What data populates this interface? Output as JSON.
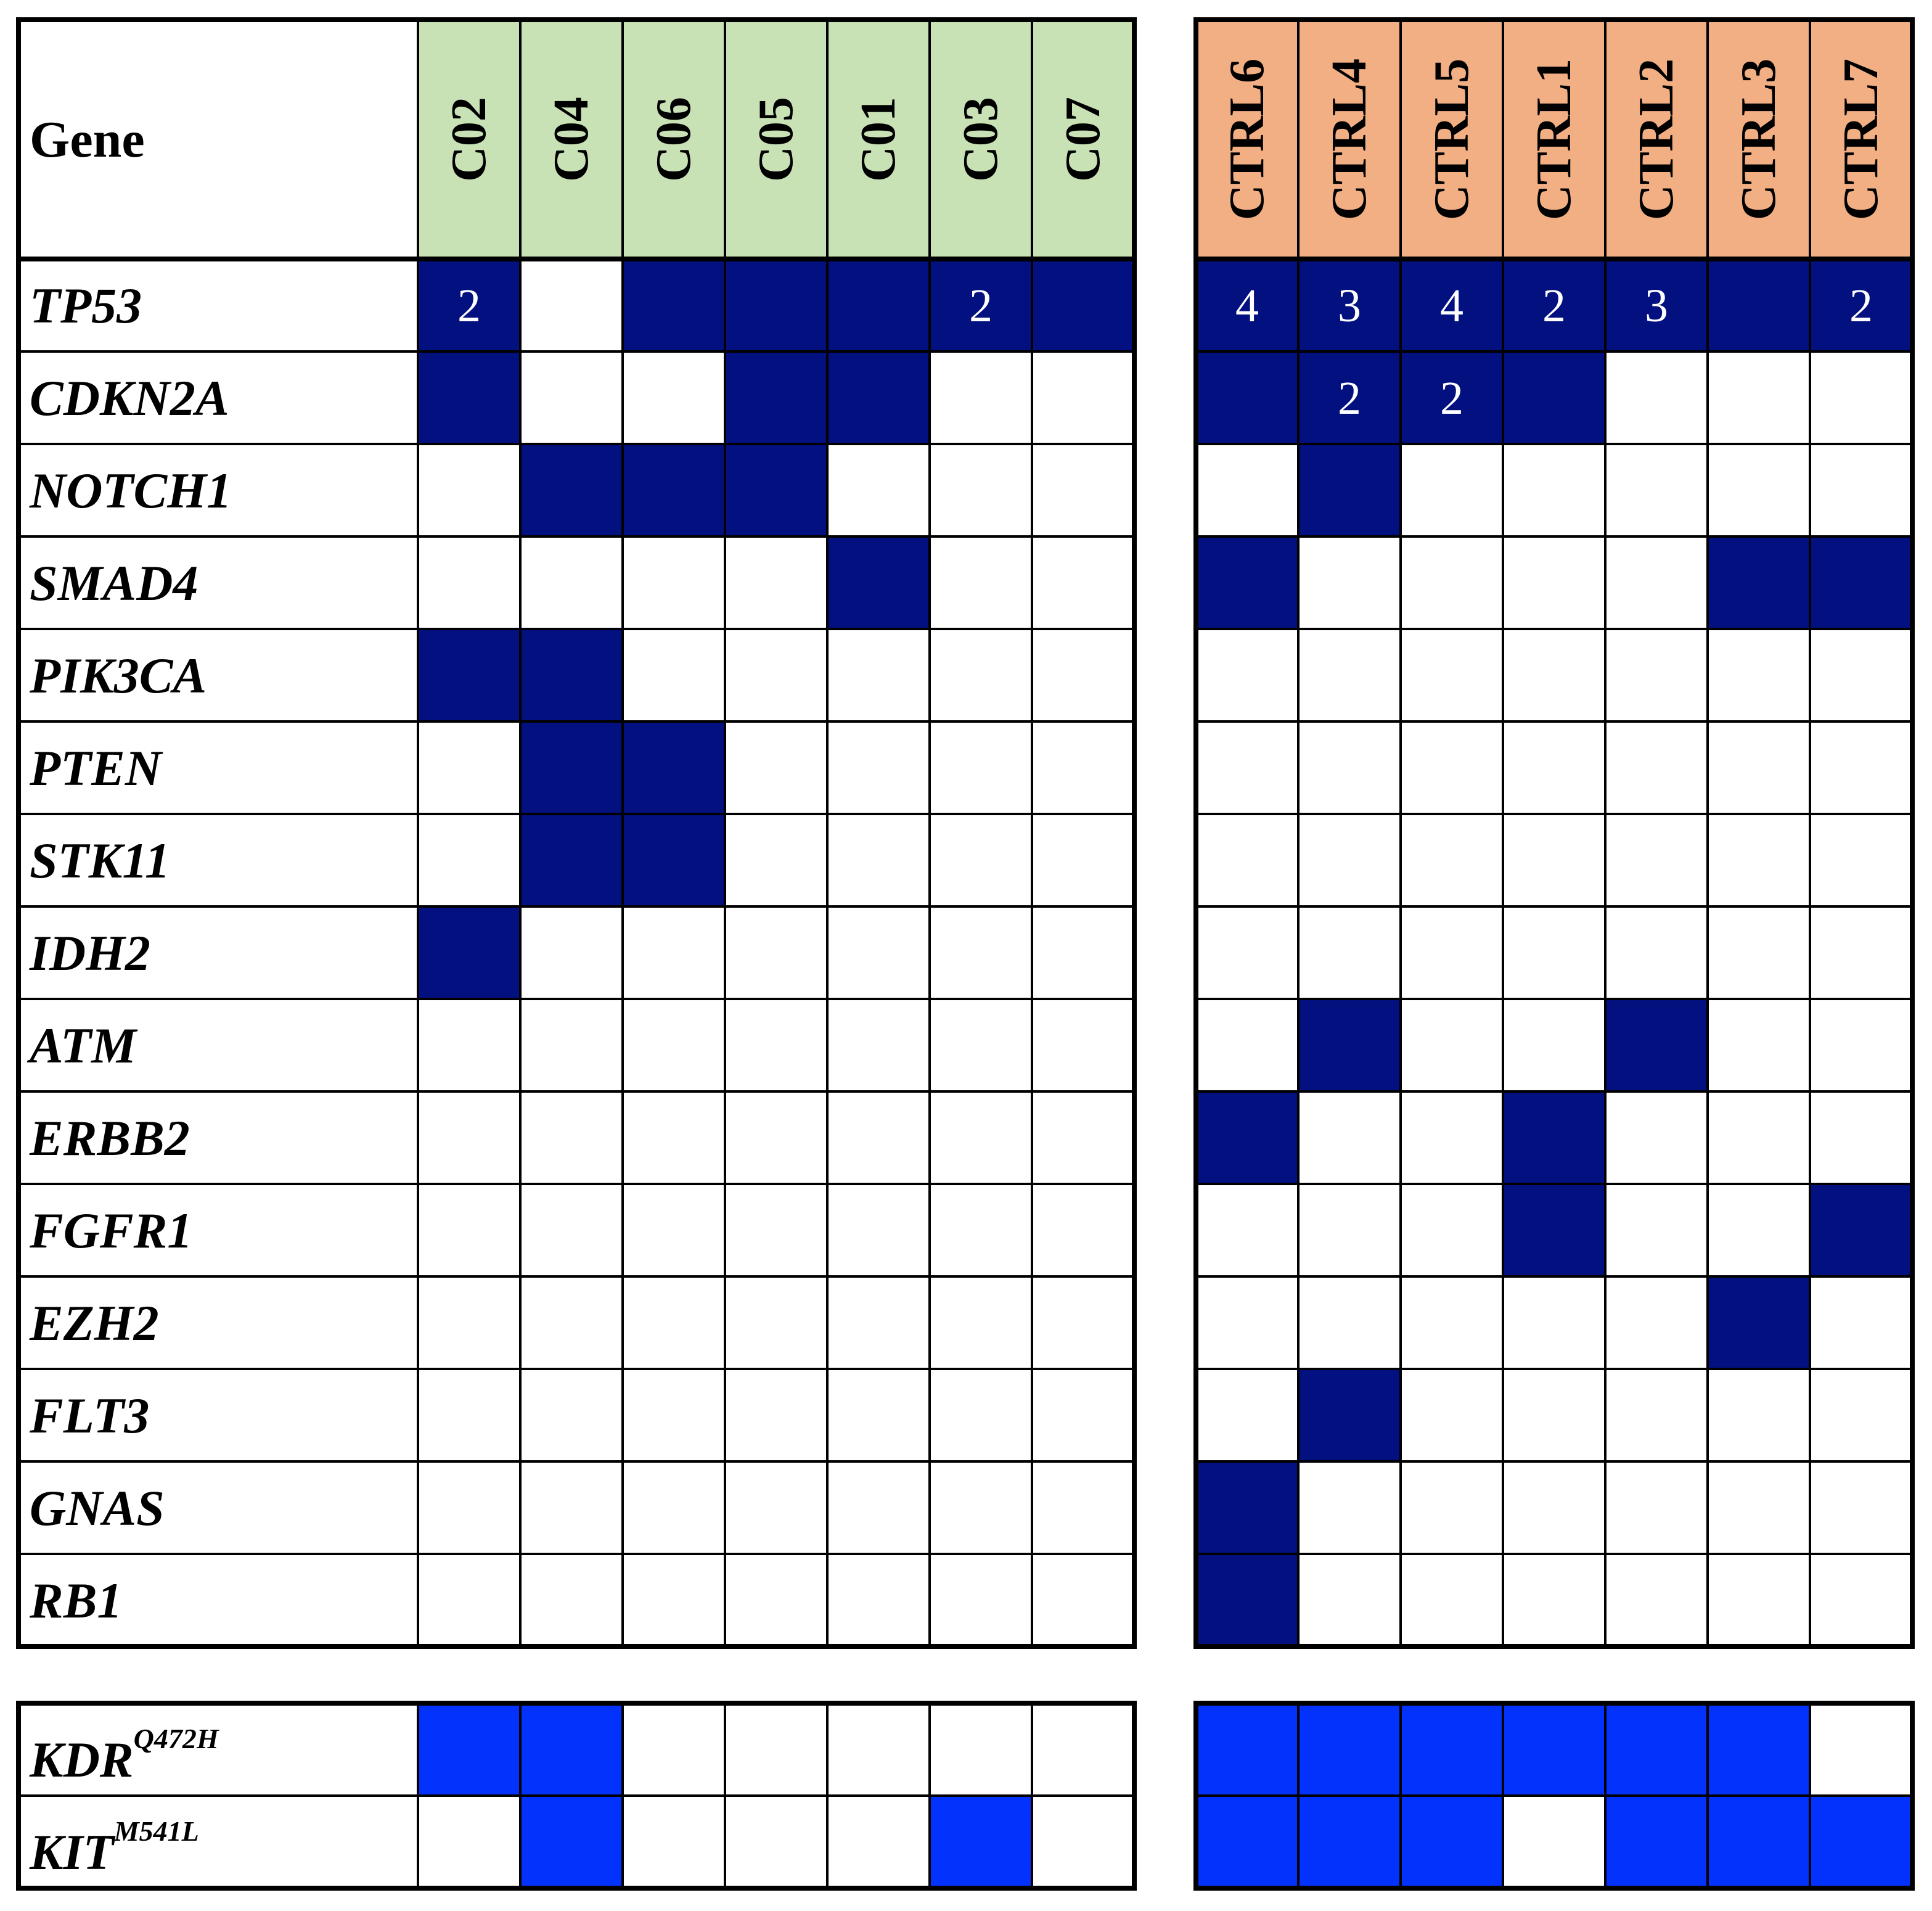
{
  "colors": {
    "case_header": "#c8e2b6",
    "control_header": "#f2af84",
    "mutation": "#03107f",
    "variant": "#0232fb",
    "grid_line": "#000000",
    "count_text": "#ffffff",
    "background": "#ffffff"
  },
  "chart_data": {
    "type": "heatmap",
    "gene_header": "Gene",
    "case_samples": [
      "C02",
      "C04",
      "C06",
      "C05",
      "C01",
      "C03",
      "C07"
    ],
    "control_samples": [
      "CTRL6",
      "CTRL4",
      "CTRL5",
      "CTRL1",
      "CTRL2",
      "CTRL3",
      "CTRL7"
    ],
    "genes": [
      {
        "gene": "TP53",
        "case": [
          "2",
          "0",
          "1",
          "1",
          "1",
          "2",
          "1"
        ],
        "control": [
          "4",
          "3",
          "4",
          "2",
          "3",
          "1",
          "2"
        ]
      },
      {
        "gene": "CDKN2A",
        "case": [
          "1",
          "0",
          "0",
          "1",
          "1",
          "0",
          "0"
        ],
        "control": [
          "1",
          "2",
          "2",
          "1",
          "0",
          "0",
          "0"
        ]
      },
      {
        "gene": "NOTCH1",
        "case": [
          "0",
          "1",
          "1",
          "1",
          "0",
          "0",
          "0"
        ],
        "control": [
          "0",
          "1",
          "0",
          "0",
          "0",
          "0",
          "0"
        ]
      },
      {
        "gene": "SMAD4",
        "case": [
          "0",
          "0",
          "0",
          "0",
          "1",
          "0",
          "0"
        ],
        "control": [
          "1",
          "0",
          "0",
          "0",
          "0",
          "1",
          "1"
        ]
      },
      {
        "gene": "PIK3CA",
        "case": [
          "1",
          "1",
          "0",
          "0",
          "0",
          "0",
          "0"
        ],
        "control": [
          "0",
          "0",
          "0",
          "0",
          "0",
          "0",
          "0"
        ]
      },
      {
        "gene": "PTEN",
        "case": [
          "0",
          "1",
          "1",
          "0",
          "0",
          "0",
          "0"
        ],
        "control": [
          "0",
          "0",
          "0",
          "0",
          "0",
          "0",
          "0"
        ]
      },
      {
        "gene": "STK11",
        "case": [
          "0",
          "1",
          "1",
          "0",
          "0",
          "0",
          "0"
        ],
        "control": [
          "0",
          "0",
          "0",
          "0",
          "0",
          "0",
          "0"
        ]
      },
      {
        "gene": "IDH2",
        "case": [
          "1",
          "0",
          "0",
          "0",
          "0",
          "0",
          "0"
        ],
        "control": [
          "0",
          "0",
          "0",
          "0",
          "0",
          "0",
          "0"
        ]
      },
      {
        "gene": "ATM",
        "case": [
          "0",
          "0",
          "0",
          "0",
          "0",
          "0",
          "0"
        ],
        "control": [
          "0",
          "1",
          "0",
          "0",
          "1",
          "0",
          "0"
        ]
      },
      {
        "gene": "ERBB2",
        "case": [
          "0",
          "0",
          "0",
          "0",
          "0",
          "0",
          "0"
        ],
        "control": [
          "1",
          "0",
          "0",
          "1",
          "0",
          "0",
          "0"
        ]
      },
      {
        "gene": "FGFR1",
        "case": [
          "0",
          "0",
          "0",
          "0",
          "0",
          "0",
          "0"
        ],
        "control": [
          "0",
          "0",
          "0",
          "1",
          "0",
          "0",
          "1"
        ]
      },
      {
        "gene": "EZH2",
        "case": [
          "0",
          "0",
          "0",
          "0",
          "0",
          "0",
          "0"
        ],
        "control": [
          "0",
          "0",
          "0",
          "0",
          "0",
          "1",
          "0"
        ]
      },
      {
        "gene": "FLT3",
        "case": [
          "0",
          "0",
          "0",
          "0",
          "0",
          "0",
          "0"
        ],
        "control": [
          "0",
          "1",
          "0",
          "0",
          "0",
          "0",
          "0"
        ]
      },
      {
        "gene": "GNAS",
        "case": [
          "0",
          "0",
          "0",
          "0",
          "0",
          "0",
          "0"
        ],
        "control": [
          "1",
          "0",
          "0",
          "0",
          "0",
          "0",
          "0"
        ]
      },
      {
        "gene": "RB1",
        "case": [
          "0",
          "0",
          "0",
          "0",
          "0",
          "0",
          "0"
        ],
        "control": [
          "1",
          "0",
          "0",
          "0",
          "0",
          "0",
          "0"
        ]
      }
    ],
    "variants": [
      {
        "gene": "KDR",
        "mutation": "Q472H",
        "case": [
          1,
          1,
          0,
          0,
          0,
          0,
          0
        ],
        "control": [
          1,
          1,
          1,
          1,
          1,
          1,
          0
        ]
      },
      {
        "gene": "KIT",
        "mutation": "M541L",
        "case": [
          0,
          1,
          0,
          0,
          0,
          1,
          0
        ],
        "control": [
          1,
          1,
          1,
          0,
          1,
          1,
          1
        ]
      }
    ]
  }
}
